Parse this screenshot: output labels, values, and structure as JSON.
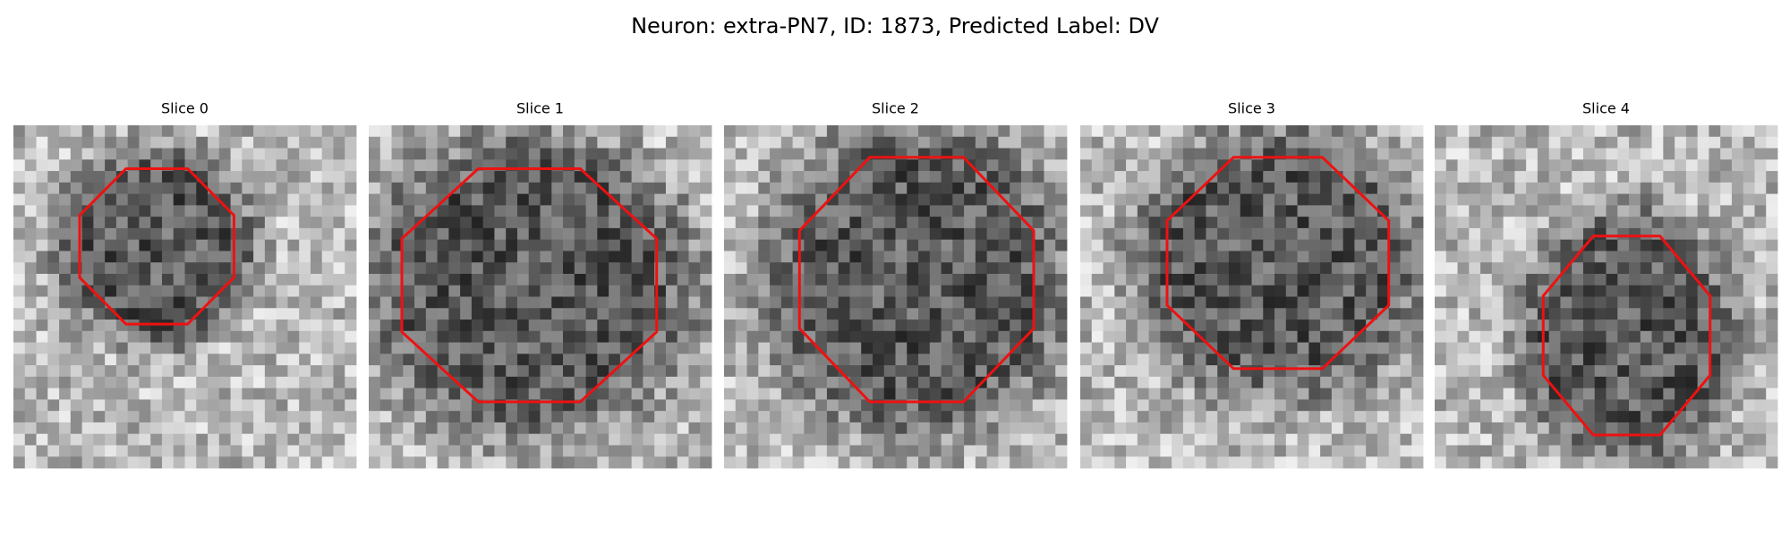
{
  "header": {
    "title": "Neuron: extra-PN7, ID: 1873, Predicted Label: DV"
  },
  "panels": [
    {
      "title": "Slice 0"
    },
    {
      "title": "Slice 1"
    },
    {
      "title": "Slice 2"
    },
    {
      "title": "Slice 3"
    },
    {
      "title": "Slice 4"
    }
  ]
}
